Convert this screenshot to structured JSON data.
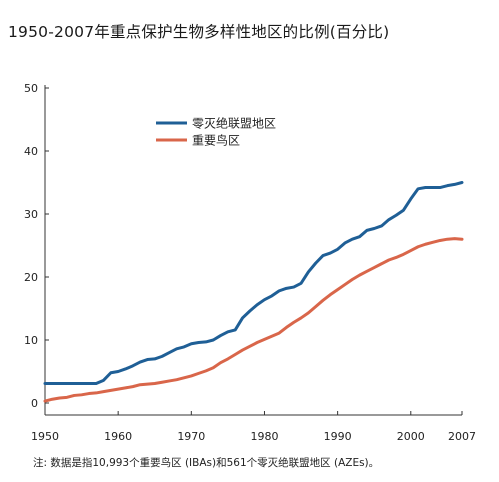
{
  "chart_data": {
    "type": "line",
    "title": "1950-2007年重点保护生物多样性地区的比例(百分比)",
    "note": "注: 数据是指10,993个重要鸟区 (IBAs)和561个零灭绝联盟地区 (AZEs)。",
    "xlim": [
      1950,
      2007
    ],
    "ylim": [
      0,
      50
    ],
    "x_ticks": [
      "1950",
      "1960",
      "1970",
      "1980",
      "1990",
      "2000",
      "2007"
    ],
    "y_ticks": [
      "0",
      "10",
      "20",
      "30",
      "40",
      "50"
    ],
    "grid": false,
    "legend_position": "upper-left",
    "series": [
      {
        "name": "零灭绝联盟地区",
        "color": "#1f5f96",
        "points": [
          [
            1950,
            3.1
          ],
          [
            1951,
            3.1
          ],
          [
            1952,
            3.1
          ],
          [
            1953,
            3.1
          ],
          [
            1954,
            3.1
          ],
          [
            1955,
            3.1
          ],
          [
            1956,
            3.1
          ],
          [
            1957,
            3.1
          ],
          [
            1958,
            3.6
          ],
          [
            1959,
            4.8
          ],
          [
            1960,
            5.0
          ],
          [
            1961,
            5.4
          ],
          [
            1962,
            5.9
          ],
          [
            1963,
            6.5
          ],
          [
            1964,
            6.9
          ],
          [
            1965,
            7.0
          ],
          [
            1966,
            7.4
          ],
          [
            1967,
            8.0
          ],
          [
            1968,
            8.6
          ],
          [
            1969,
            8.9
          ],
          [
            1970,
            9.4
          ],
          [
            1971,
            9.6
          ],
          [
            1972,
            9.7
          ],
          [
            1973,
            10.0
          ],
          [
            1974,
            10.7
          ],
          [
            1975,
            11.3
          ],
          [
            1976,
            11.6
          ],
          [
            1977,
            13.5
          ],
          [
            1978,
            14.6
          ],
          [
            1979,
            15.6
          ],
          [
            1980,
            16.4
          ],
          [
            1981,
            17.0
          ],
          [
            1982,
            17.8
          ],
          [
            1983,
            18.2
          ],
          [
            1984,
            18.4
          ],
          [
            1985,
            19.0
          ],
          [
            1986,
            20.8
          ],
          [
            1987,
            22.2
          ],
          [
            1988,
            23.4
          ],
          [
            1989,
            23.8
          ],
          [
            1990,
            24.4
          ],
          [
            1991,
            25.4
          ],
          [
            1992,
            26.0
          ],
          [
            1993,
            26.4
          ],
          [
            1994,
            27.4
          ],
          [
            1995,
            27.7
          ],
          [
            1996,
            28.1
          ],
          [
            1997,
            29.1
          ],
          [
            1998,
            29.8
          ],
          [
            1999,
            30.6
          ],
          [
            2000,
            32.4
          ],
          [
            2001,
            34.0
          ],
          [
            2002,
            34.2
          ],
          [
            2003,
            34.2
          ],
          [
            2004,
            34.2
          ],
          [
            2005,
            34.5
          ],
          [
            2006,
            34.7
          ],
          [
            2007,
            35.0
          ]
        ]
      },
      {
        "name": "重要鸟区",
        "color": "#d9664a",
        "points": [
          [
            1950,
            0.3
          ],
          [
            1951,
            0.6
          ],
          [
            1952,
            0.8
          ],
          [
            1953,
            0.9
          ],
          [
            1954,
            1.2
          ],
          [
            1955,
            1.3
          ],
          [
            1956,
            1.5
          ],
          [
            1957,
            1.6
          ],
          [
            1958,
            1.8
          ],
          [
            1959,
            2.0
          ],
          [
            1960,
            2.2
          ],
          [
            1961,
            2.4
          ],
          [
            1962,
            2.6
          ],
          [
            1963,
            2.9
          ],
          [
            1964,
            3.0
          ],
          [
            1965,
            3.1
          ],
          [
            1966,
            3.3
          ],
          [
            1967,
            3.5
          ],
          [
            1968,
            3.7
          ],
          [
            1969,
            4.0
          ],
          [
            1970,
            4.3
          ],
          [
            1971,
            4.7
          ],
          [
            1972,
            5.1
          ],
          [
            1973,
            5.6
          ],
          [
            1974,
            6.4
          ],
          [
            1975,
            7.0
          ],
          [
            1976,
            7.7
          ],
          [
            1977,
            8.4
          ],
          [
            1978,
            9.0
          ],
          [
            1979,
            9.6
          ],
          [
            1980,
            10.1
          ],
          [
            1981,
            10.6
          ],
          [
            1982,
            11.1
          ],
          [
            1983,
            12.0
          ],
          [
            1984,
            12.8
          ],
          [
            1985,
            13.5
          ],
          [
            1986,
            14.3
          ],
          [
            1987,
            15.3
          ],
          [
            1988,
            16.3
          ],
          [
            1989,
            17.2
          ],
          [
            1990,
            18.0
          ],
          [
            1991,
            18.8
          ],
          [
            1992,
            19.6
          ],
          [
            1993,
            20.3
          ],
          [
            1994,
            20.9
          ],
          [
            1995,
            21.5
          ],
          [
            1996,
            22.1
          ],
          [
            1997,
            22.7
          ],
          [
            1998,
            23.1
          ],
          [
            1999,
            23.6
          ],
          [
            2000,
            24.2
          ],
          [
            2001,
            24.8
          ],
          [
            2002,
            25.2
          ],
          [
            2003,
            25.5
          ],
          [
            2004,
            25.8
          ],
          [
            2005,
            26.0
          ],
          [
            2006,
            26.1
          ],
          [
            2007,
            26.0
          ]
        ]
      }
    ]
  }
}
